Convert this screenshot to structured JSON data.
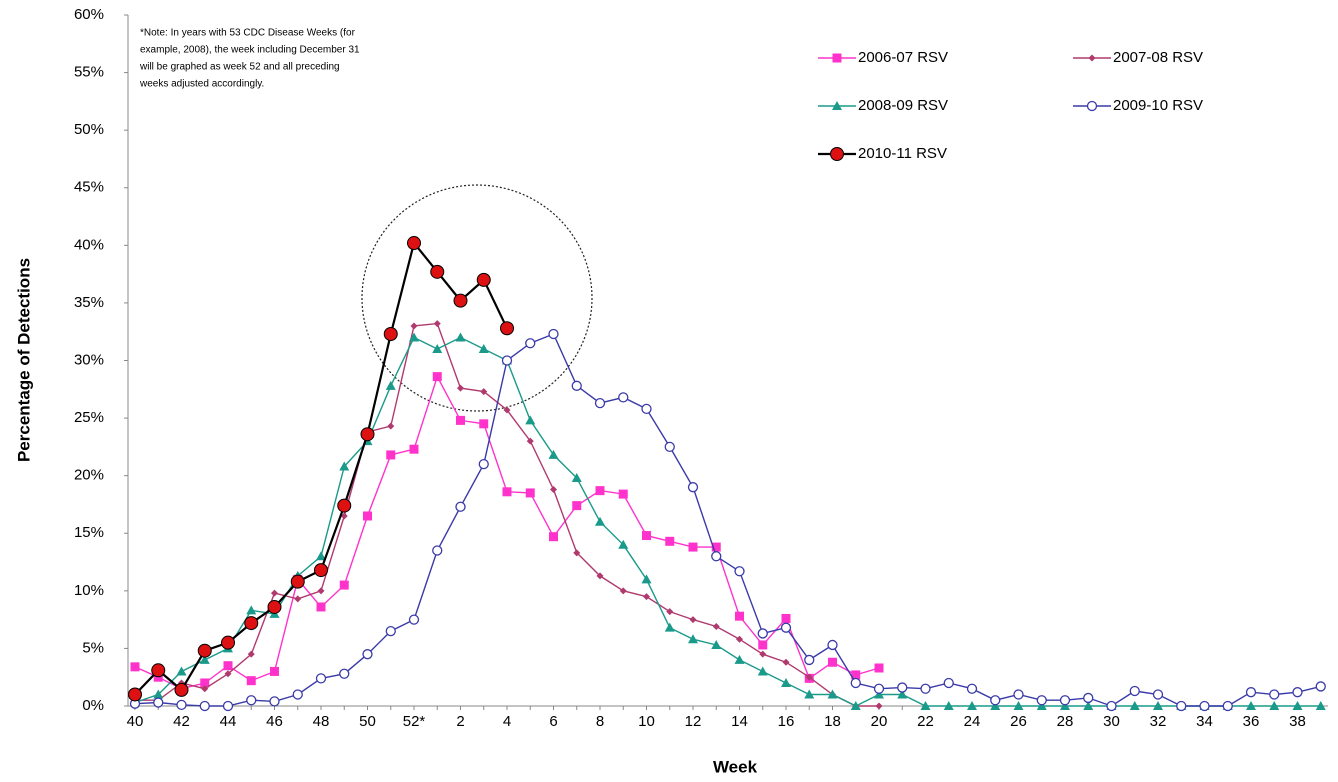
{
  "chart_data": {
    "type": "line",
    "y_label": "Percentage of Detections",
    "x_label": "Week",
    "note": [
      "*Note: In years with 53 CDC Disease Weeks (for",
      "example, 2008), the week including December 31",
      "will be graphed as week 52 and all preceding",
      "weeks adjusted accordingly."
    ],
    "categories": [
      "40",
      null,
      "42",
      null,
      "44",
      null,
      "46",
      null,
      "48",
      null,
      "50",
      null,
      "52*",
      null,
      "2",
      null,
      "4",
      null,
      "6",
      null,
      "8",
      null,
      "10",
      null,
      "12",
      null,
      "14",
      null,
      "16",
      null,
      "18",
      null,
      "20",
      null,
      "22",
      null,
      "24",
      null,
      "26",
      null,
      "28",
      null,
      "30",
      null,
      "32",
      null,
      "34",
      null,
      "36",
      null,
      "38",
      null
    ],
    "ylim": [
      0,
      60
    ],
    "yticks": [
      {
        "value": 0,
        "label": "0%"
      },
      {
        "value": 5,
        "label": "5%"
      },
      {
        "value": 10,
        "label": "10%"
      },
      {
        "value": 15,
        "label": "15%"
      },
      {
        "value": 20,
        "label": "20%"
      },
      {
        "value": 25,
        "label": "25%"
      },
      {
        "value": 30,
        "label": "30%"
      },
      {
        "value": 35,
        "label": "35%"
      },
      {
        "value": 40,
        "label": "40%"
      },
      {
        "value": 45,
        "label": "45%"
      },
      {
        "value": 50,
        "label": "50%"
      },
      {
        "value": 55,
        "label": "55%"
      },
      {
        "value": 60,
        "label": "60%"
      }
    ],
    "grid": false,
    "legend": "top-right",
    "series": [
      {
        "name": "2006-07 RSV",
        "color": "#ff33cc",
        "marker": "square",
        "marker_color": "#ff33cc",
        "values": [
          3.4,
          2.5,
          1.5,
          2.0,
          3.5,
          2.2,
          3.0,
          11.0,
          8.6,
          10.5,
          16.5,
          21.8,
          22.3,
          28.6,
          24.8,
          24.5,
          18.6,
          18.5,
          14.7,
          17.4,
          18.7,
          18.4,
          14.8,
          14.3,
          13.8,
          13.8,
          7.8,
          5.3,
          7.6,
          2.4,
          3.8,
          2.7,
          3.3,
          null,
          null,
          null,
          null,
          null,
          null,
          null,
          null,
          null,
          null,
          null,
          null,
          null,
          null,
          null,
          null,
          null,
          null,
          null
        ]
      },
      {
        "name": "2007-08 RSV",
        "color": "#b03a6e",
        "marker": "diamond",
        "marker_color": "#b03a6e",
        "values": [
          0.5,
          0.5,
          2.0,
          1.5,
          2.8,
          4.5,
          9.8,
          9.3,
          10.0,
          16.5,
          23.8,
          24.3,
          33.0,
          33.2,
          27.6,
          27.3,
          25.7,
          23.0,
          18.8,
          13.3,
          11.3,
          10.0,
          9.5,
          8.2,
          7.5,
          6.9,
          5.8,
          4.5,
          3.8,
          2.5,
          1.0,
          0.0,
          0.0,
          null,
          null,
          null,
          null,
          null,
          null,
          null,
          null,
          null,
          null,
          null,
          null,
          null,
          null,
          null,
          null,
          null,
          null,
          null
        ]
      },
      {
        "name": "2008-09 RSV",
        "color": "#1a9a8a",
        "marker": "triangle",
        "marker_color": "#1a9a8a",
        "values": [
          0.3,
          1.0,
          3.0,
          4.0,
          5.0,
          8.3,
          8.0,
          11.3,
          13.0,
          20.8,
          23.0,
          27.8,
          32.0,
          31.0,
          32.0,
          31.0,
          30.0,
          24.8,
          21.8,
          19.8,
          16.0,
          14.0,
          11.0,
          6.8,
          5.8,
          5.3,
          4.0,
          3.0,
          2.0,
          1.0,
          1.0,
          0,
          1.0,
          1.0,
          0,
          0,
          0,
          0,
          0,
          0,
          0,
          0,
          0,
          0,
          0,
          0,
          0,
          0,
          0,
          0,
          0,
          0
        ]
      },
      {
        "name": "2009-10 RSV",
        "color": "#3a3aa8",
        "marker": "open-circle",
        "marker_color": "#3a3aa8",
        "values": [
          0.2,
          0.3,
          0.1,
          0,
          0,
          0.5,
          0.4,
          1.0,
          2.4,
          2.8,
          4.5,
          6.5,
          7.5,
          13.5,
          17.3,
          21.0,
          30.0,
          31.5,
          32.3,
          27.8,
          26.3,
          26.8,
          25.8,
          22.5,
          19.0,
          13.0,
          11.7,
          6.3,
          6.8,
          4.0,
          5.3,
          2.0,
          1.5,
          1.6,
          1.5,
          2.0,
          1.5,
          0.5,
          1.0,
          0.5,
          0.5,
          0.7,
          0,
          1.3,
          1.0,
          0,
          0,
          0,
          1.2,
          1.0,
          1.2,
          1.7
        ]
      },
      {
        "name": "2010-11 RSV",
        "color": "#000000",
        "marker": "circle",
        "marker_color": "#dd1111",
        "values": [
          1.0,
          3.1,
          1.4,
          4.8,
          5.5,
          7.2,
          8.6,
          10.8,
          11.8,
          17.4,
          23.6,
          32.3,
          40.2,
          37.7,
          35.2,
          37.0,
          32.8,
          null,
          null,
          null,
          null,
          null,
          null,
          null,
          null,
          null,
          null,
          null,
          null,
          null,
          null,
          null,
          null,
          null,
          null,
          null,
          null,
          null,
          null,
          null,
          null,
          null,
          null,
          null,
          null,
          null,
          null,
          null,
          null,
          null,
          null,
          null
        ]
      }
    ]
  }
}
